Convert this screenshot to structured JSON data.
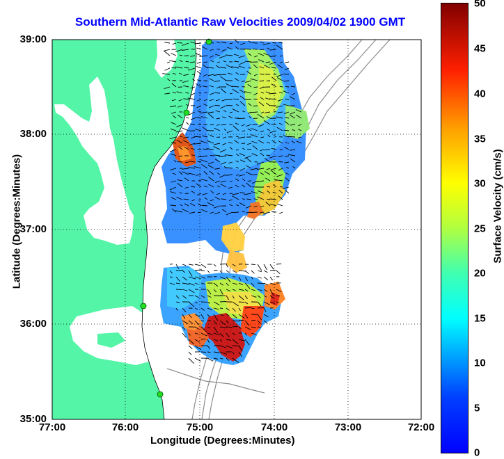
{
  "title": "Southern Mid-Atlantic Raw Velocities 2009/04/02 1900 GMT",
  "axes": {
    "xlabel": "Longitude (Degrees:Minutes)",
    "ylabel": "Latitude (Degrees:Minutes)",
    "xticks": [
      "77:00",
      "76:00",
      "75:00",
      "74:00",
      "73:00",
      "72:00"
    ],
    "yticks": [
      "39:00",
      "38:00",
      "37:00",
      "36:00",
      "35:00"
    ],
    "grid": "dotted"
  },
  "colorbar": {
    "label": "Surface Velocity (cm/s)",
    "ticks": [
      "50",
      "45",
      "40",
      "35",
      "30",
      "25",
      "20",
      "15",
      "10",
      "5",
      "0"
    ],
    "range": [
      0,
      50
    ],
    "colormap": "jet"
  },
  "colors": {
    "land": "#55f5a8",
    "title": "#0000ff",
    "stations": "#22dd22"
  },
  "legend_icons": [
    "radar-station-icon"
  ]
}
